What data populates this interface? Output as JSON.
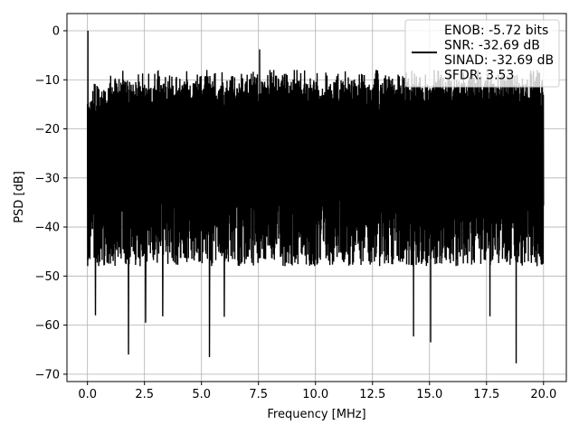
{
  "chart_data": {
    "type": "line",
    "xlabel": "Frequency [MHz]",
    "ylabel": "PSD [dB]",
    "xlim": [
      -0.9,
      21.0
    ],
    "ylim": [
      -71.5,
      3.5
    ],
    "x_ticks": [
      0.0,
      2.5,
      5.0,
      7.5,
      10.0,
      12.5,
      15.0,
      17.5,
      20.0
    ],
    "x_tick_labels": [
      "0.0",
      "2.5",
      "5.0",
      "7.5",
      "10.0",
      "12.5",
      "15.0",
      "17.5",
      "20.0"
    ],
    "y_ticks": [
      0,
      -10,
      -20,
      -30,
      -40,
      -50,
      -60,
      -70
    ],
    "y_tick_labels": [
      "0",
      "−10",
      "−20",
      "−30",
      "−40",
      "−50",
      "−60",
      "−70"
    ],
    "grid": true,
    "legend_position": "top-right",
    "series_color": "#000000",
    "series": [
      {
        "name": "ENOB: -5.72 bits\nSNR: -32.69 dB\nSINAD: -32.69 dB\nSFDR: 3.53",
        "x_range": [
          0.0,
          20.0
        ],
        "noise_floor_top_dB": -12.5,
        "noise_floor_mean_dB": -28.0,
        "spikes": [
          {
            "x": 0.02,
            "y": 0.0
          },
          {
            "x": 7.55,
            "y": -3.8
          },
          {
            "x": 0.35,
            "y": -58.0
          },
          {
            "x": 1.8,
            "y": -66.0
          },
          {
            "x": 5.35,
            "y": -66.5
          },
          {
            "x": 2.55,
            "y": -59.5
          },
          {
            "x": 3.3,
            "y": -58.2
          },
          {
            "x": 6.0,
            "y": -58.3
          },
          {
            "x": 14.3,
            "y": -62.3
          },
          {
            "x": 15.05,
            "y": -63.5
          },
          {
            "x": 17.65,
            "y": -58.2
          },
          {
            "x": 18.8,
            "y": -67.8
          }
        ]
      }
    ]
  }
}
